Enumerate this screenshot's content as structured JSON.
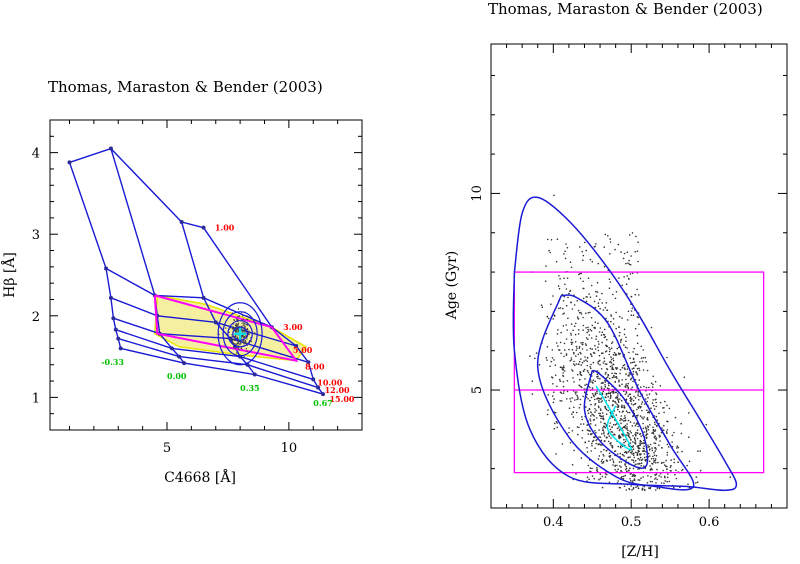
{
  "chart_data": [
    {
      "type": "line",
      "title": "Thomas, Maraston & Bender (2003)",
      "xlabel": "C4668 [Å]",
      "ylabel": "Hβ [Å]",
      "xlim": [
        0.2,
        13.0
      ],
      "ylim": [
        0.6,
        4.4
      ],
      "xticks": [
        5,
        10
      ],
      "yticks": [
        1,
        2,
        3,
        4
      ],
      "grid": false,
      "age_labels": [
        "1.00",
        "3.00",
        "5.00",
        "8.00",
        "10.00",
        "12.00",
        "15.00"
      ],
      "metallicity_labels": [
        "-0.33",
        "0.00",
        "0.35",
        "0.67"
      ],
      "model_grid_metallicities": [
        -0.33,
        0.0,
        0.35,
        0.67
      ],
      "model_grid": [
        [
          [
            1.0,
            3.88
          ],
          [
            2.5,
            2.58
          ],
          [
            2.7,
            2.22
          ],
          [
            2.8,
            1.97
          ],
          [
            2.9,
            1.83
          ],
          [
            3.0,
            1.72
          ],
          [
            3.1,
            1.6
          ]
        ],
        [
          [
            2.7,
            4.05
          ],
          [
            4.5,
            2.25
          ],
          [
            4.6,
            2.0
          ],
          [
            4.7,
            1.78
          ],
          [
            5.2,
            1.6
          ],
          [
            5.5,
            1.5
          ],
          [
            5.7,
            1.42
          ]
        ],
        [
          [
            5.6,
            3.15
          ],
          [
            6.5,
            2.22
          ],
          [
            7.0,
            1.92
          ],
          [
            7.6,
            1.72
          ],
          [
            8.0,
            1.5
          ],
          [
            8.3,
            1.4
          ],
          [
            8.6,
            1.28
          ]
        ],
        [
          [
            6.5,
            3.08
          ],
          [
            9.3,
            1.86
          ],
          [
            10.3,
            1.63
          ],
          [
            10.8,
            1.43
          ],
          [
            11.0,
            1.22
          ],
          [
            11.2,
            1.12
          ],
          [
            11.4,
            1.04
          ]
        ]
      ],
      "yellow_region": [
        [
          4.6,
          2.25
        ],
        [
          6.6,
          2.14
        ],
        [
          9.3,
          1.86
        ],
        [
          10.7,
          1.62
        ],
        [
          10.3,
          1.45
        ],
        [
          8.0,
          1.52
        ],
        [
          5.5,
          1.62
        ],
        [
          4.5,
          1.78
        ]
      ],
      "magenta_path": [
        [
          4.5,
          2.25
        ],
        [
          9.3,
          1.86
        ],
        [
          10.3,
          1.45
        ],
        [
          4.6,
          1.78
        ],
        [
          4.5,
          2.25
        ]
      ],
      "measurement": {
        "x": 8.0,
        "y": 1.78,
        "ellipse_radii": [
          [
            0.3,
            0.08
          ],
          [
            0.5,
            0.16
          ],
          [
            0.7,
            0.27
          ],
          [
            0.9,
            0.38
          ]
        ]
      }
    },
    {
      "type": "scatter",
      "title": "Thomas, Maraston & Bender (2003)",
      "xlabel": "[Z/H]",
      "ylabel": "Age (Gyr)",
      "xlim": [
        0.32,
        0.7
      ],
      "ylim": [
        2.0,
        13.8
      ],
      "xticks": [
        0.4,
        0.5,
        0.6
      ],
      "yticks": [
        5,
        10
      ],
      "grid": false,
      "box": {
        "x": [
          0.35,
          0.67
        ],
        "y": [
          2.9,
          8.0
        ]
      },
      "hline": 5.0,
      "contours": {
        "outer": [
          [
            0.35,
            8.0
          ],
          [
            0.36,
            9.5
          ],
          [
            0.38,
            9.9
          ],
          [
            0.42,
            9.3
          ],
          [
            0.47,
            8.1
          ],
          [
            0.51,
            6.9
          ],
          [
            0.55,
            5.5
          ],
          [
            0.59,
            4.2
          ],
          [
            0.62,
            3.2
          ],
          [
            0.635,
            2.6
          ],
          [
            0.62,
            2.45
          ],
          [
            0.57,
            2.55
          ],
          [
            0.5,
            2.6
          ],
          [
            0.42,
            2.8
          ],
          [
            0.37,
            4.0
          ],
          [
            0.35,
            6.0
          ],
          [
            0.35,
            8.0
          ]
        ],
        "middle": [
          [
            0.41,
            7.4
          ],
          [
            0.38,
            5.6
          ],
          [
            0.42,
            3.8
          ],
          [
            0.48,
            2.8
          ],
          [
            0.53,
            2.55
          ],
          [
            0.58,
            2.55
          ],
          [
            0.55,
            3.6
          ],
          [
            0.51,
            5.0
          ],
          [
            0.47,
            6.7
          ],
          [
            0.43,
            7.35
          ],
          [
            0.41,
            7.4
          ]
        ],
        "inner": [
          [
            0.45,
            5.5
          ],
          [
            0.44,
            4.5
          ],
          [
            0.46,
            3.7
          ],
          [
            0.5,
            3.1
          ],
          [
            0.52,
            3.1
          ],
          [
            0.515,
            3.9
          ],
          [
            0.49,
            4.8
          ],
          [
            0.46,
            5.4
          ],
          [
            0.45,
            5.5
          ]
        ],
        "cyan": [
          [
            0.455,
            5.1
          ],
          [
            0.47,
            4.6
          ],
          [
            0.5,
            3.5
          ],
          [
            0.47,
            4.0
          ],
          [
            0.48,
            4.6
          ]
        ]
      },
      "scatter_note": "dense cloud of Monte Carlo points around [Z/H]≈0.49, Age≈4 Gyr"
    }
  ],
  "colors": {
    "grid": "#1a1ad4",
    "yellow": "#e6e600",
    "magenta": "#ff00ff",
    "cyan": "#00e5ee",
    "age_label": "#ff0000",
    "z_label": "#00c000",
    "points": "#333333"
  }
}
